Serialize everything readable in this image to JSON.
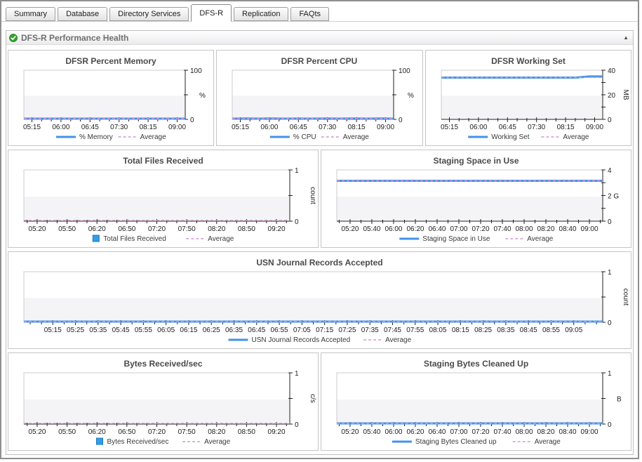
{
  "tabs": [
    {
      "label": "Summary",
      "active": false
    },
    {
      "label": "Database",
      "active": false
    },
    {
      "label": "Directory Services",
      "active": false
    },
    {
      "label": "DFS-R",
      "active": true
    },
    {
      "label": "Replication",
      "active": false
    },
    {
      "label": "FAQts",
      "active": false
    }
  ],
  "section": {
    "title": "DFS-R Performance Health",
    "status_icon": "green-check",
    "collapse_glyph": "▲"
  },
  "chart_data": {
    "legend_average_label": "Average",
    "colors": {
      "series": "#4292e8",
      "average": "#cf9ad0",
      "bar": "#2f9fe8",
      "bar_border": "#1b75bb",
      "axis": "#222222",
      "plot_border": "#cccccc",
      "plot_lower_fill": "#f4f4f7",
      "title_text": "#4a4a4a",
      "tick_text": "#222222"
    },
    "charts": [
      {
        "id": "dfsr-percent-memory",
        "title": "DFSR Percent Memory",
        "type": "line",
        "unit": "%",
        "y_max": 100,
        "y_max_label": "100",
        "y_mid_label": "",
        "y_min_label": "0",
        "y_quarter_ticks": false,
        "minor_ticks": 2,
        "x_labels": [
          "05:15",
          "06:00",
          "06:45",
          "07:30",
          "08:15",
          "09:00"
        ],
        "values": [
          1.5,
          1.5,
          1.5,
          1.5,
          1.5,
          1.5,
          1.5,
          1.5,
          1.5,
          1.5,
          1.5,
          1.5,
          1.5
        ],
        "average": 1.5,
        "series_label": "% Memory"
      },
      {
        "id": "dfsr-percent-cpu",
        "title": "DFSR Percent CPU",
        "type": "line",
        "unit": "%",
        "y_max": 100,
        "y_max_label": "100",
        "y_mid_label": "",
        "y_min_label": "0",
        "y_quarter_ticks": false,
        "minor_ticks": 2,
        "x_labels": [
          "05:15",
          "06:00",
          "06:45",
          "07:30",
          "08:15",
          "09:00"
        ],
        "values": [
          1.4,
          1.7,
          1.3,
          1.8,
          1.4,
          1.6,
          1.3,
          1.7,
          1.4,
          1.8,
          1.5,
          1.9,
          1.5
        ],
        "average": 1.5,
        "series_label": "% CPU"
      },
      {
        "id": "dfsr-working-set",
        "title": "DFSR Working Set",
        "type": "line",
        "unit": "MB",
        "y_max": 40,
        "y_max_label": "40",
        "y_mid_label": "20",
        "y_min_label": "0",
        "y_quarter_ticks": true,
        "minor_ticks": 2,
        "x_labels": [
          "05:15",
          "06:00",
          "06:45",
          "07:30",
          "08:15",
          "09:00"
        ],
        "values": [
          34,
          34,
          34,
          34,
          34,
          34,
          34,
          34,
          34,
          34,
          34,
          34.9,
          34.9
        ],
        "average": 34.1,
        "series_label": "Working Set"
      },
      {
        "id": "total-files-received",
        "title": "Total Files Received",
        "type": "bar",
        "unit": "count",
        "y_max": 1,
        "y_max_label": "1",
        "y_mid_label": "",
        "y_min_label": "0",
        "y_quarter_ticks": false,
        "minor_ticks": 2,
        "x_labels": [
          "05:20",
          "05:50",
          "06:20",
          "06:50",
          "07:20",
          "07:50",
          "08:20",
          "08:50",
          "09:20"
        ],
        "values": [
          0,
          0,
          0,
          0,
          0,
          0,
          0,
          0,
          0
        ],
        "average": 0,
        "series_label": "Total Files Received"
      },
      {
        "id": "staging-space-in-use",
        "title": "Staging Space in Use",
        "type": "line",
        "unit": "",
        "y_max": 4,
        "y_max_label": "4",
        "y_mid_label": "2 G",
        "y_min_label": "0",
        "y_quarter_ticks": true,
        "minor_ticks": 1,
        "x_labels": [
          "05:20",
          "05:40",
          "06:00",
          "06:20",
          "06:40",
          "07:00",
          "07:20",
          "07:40",
          "08:00",
          "08:20",
          "08:40",
          "09:00"
        ],
        "values": [
          3.15,
          3.15,
          3.15,
          3.15,
          3.15,
          3.15,
          3.15,
          3.15,
          3.15,
          3.15,
          3.15,
          3.15,
          3.15
        ],
        "average": 3.15,
        "series_label": "Staging Space in Use"
      },
      {
        "id": "usn-journal-records-accepted",
        "title": "USN Journal Records Accepted",
        "type": "line",
        "unit": "count",
        "y_max": 1,
        "y_max_label": "1",
        "y_mid_label": "",
        "y_min_label": "0",
        "y_quarter_ticks": false,
        "minor_ticks": 1,
        "x_labels": [
          "05:15",
          "05:25",
          "05:35",
          "05:45",
          "05:55",
          "06:05",
          "06:15",
          "06:25",
          "06:35",
          "06:45",
          "06:55",
          "07:05",
          "07:15",
          "07:25",
          "07:35",
          "07:45",
          "07:55",
          "08:05",
          "08:15",
          "08:25",
          "08:35",
          "08:45",
          "08:55",
          "09:05"
        ],
        "values": [
          0,
          0,
          0,
          0,
          0,
          0,
          0,
          0,
          0,
          0,
          0,
          0,
          0
        ],
        "average": 0,
        "series_label": "USN Journal Records Accepted"
      },
      {
        "id": "bytes-received-sec",
        "title": "Bytes Received/sec",
        "type": "bar",
        "unit": "c/s",
        "y_max": 1,
        "y_max_label": "1",
        "y_mid_label": "",
        "y_min_label": "0",
        "y_quarter_ticks": false,
        "minor_ticks": 2,
        "x_labels": [
          "05:20",
          "05:50",
          "06:20",
          "06:50",
          "07:20",
          "07:50",
          "08:20",
          "08:50",
          "09:20"
        ],
        "values": [
          0,
          0,
          0,
          0,
          0,
          0,
          0,
          0,
          0
        ],
        "average": 0,
        "series_label": "Bytes Received/sec"
      },
      {
        "id": "staging-bytes-cleaned-up",
        "title": "Staging Bytes Cleaned Up",
        "type": "line",
        "unit": "B",
        "y_max": 1,
        "y_max_label": "1",
        "y_mid_label": "",
        "y_min_label": "0",
        "y_quarter_ticks": false,
        "minor_ticks": 1,
        "x_labels": [
          "05:20",
          "05:40",
          "06:00",
          "06:20",
          "06:40",
          "07:00",
          "07:20",
          "07:40",
          "08:00",
          "08:20",
          "08:40",
          "09:00"
        ],
        "values": [
          0,
          0,
          0,
          0,
          0,
          0,
          0,
          0,
          0,
          0,
          0,
          0,
          0
        ],
        "average": 0,
        "series_label": "Staging Bytes Cleaned up"
      }
    ]
  }
}
